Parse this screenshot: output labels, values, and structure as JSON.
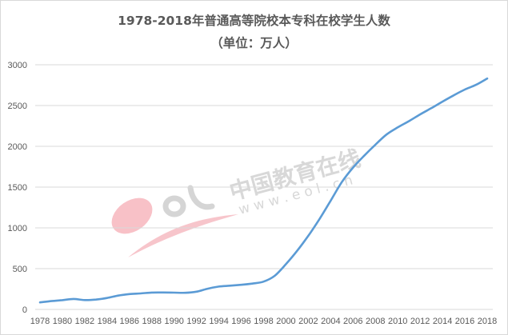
{
  "chart": {
    "title_line1": "1978-2018年普通高等院校本专科在校学生人数",
    "title_line2": "（单位：万人）",
    "line_color": "#5b9bd5",
    "grid_color": "#d9d9d9",
    "watermark": {
      "logo_text": "eol",
      "cn_text": "中国教育在线",
      "url_text": "w w w . e o l . c n"
    }
  },
  "chart_data": {
    "type": "line",
    "title": "1978-2018年普通高等院校本专科在校学生人数（单位：万人）",
    "xlabel": "",
    "ylabel": "",
    "ylim": [
      0,
      3000
    ],
    "yticks": [
      0,
      500,
      1000,
      1500,
      2000,
      2500,
      3000
    ],
    "xtick_labels": [
      "1978",
      "1980",
      "1982",
      "1984",
      "1986",
      "1988",
      "1990",
      "1992",
      "1994",
      "1996",
      "1998",
      "2000",
      "2002",
      "2004",
      "2006",
      "2008",
      "2010",
      "2012",
      "2014",
      "2016",
      "2018"
    ],
    "grid": true,
    "legend": "none",
    "x": [
      1978,
      1979,
      1980,
      1981,
      1982,
      1983,
      1984,
      1985,
      1986,
      1987,
      1988,
      1989,
      1990,
      1991,
      1992,
      1993,
      1994,
      1995,
      1996,
      1997,
      1998,
      1999,
      2000,
      2001,
      2002,
      2003,
      2004,
      2005,
      2006,
      2007,
      2008,
      2009,
      2010,
      2011,
      2012,
      2013,
      2014,
      2015,
      2016,
      2017,
      2018
    ],
    "series": [
      {
        "name": "在校学生人数",
        "values": [
          86,
          102,
          114,
          128,
          115,
          121,
          140,
          170,
          188,
          196,
          207,
          208,
          206,
          204,
          218,
          254,
          280,
          291,
          302,
          317,
          341,
          413,
          556,
          719,
          903,
          1109,
          1334,
          1562,
          1739,
          1885,
          2021,
          2145,
          2232,
          2309,
          2391,
          2468,
          2548,
          2625,
          2696,
          2754,
          2831
        ]
      }
    ]
  }
}
